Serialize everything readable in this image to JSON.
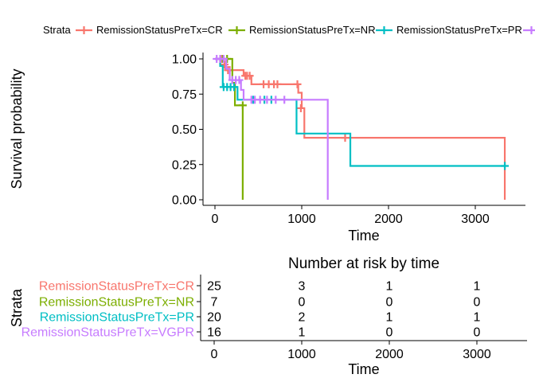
{
  "chart_data": [
    {
      "type": "line",
      "subtype": "kaplan-meier",
      "xlabel": "Time",
      "ylabel": "Survival probability",
      "xlim": [
        0,
        3350
      ],
      "ylim": [
        0,
        1
      ],
      "x_ticks": [
        0,
        1000,
        2000,
        3000
      ],
      "y_ticks": [
        0.0,
        0.25,
        0.5,
        0.75,
        1.0
      ],
      "x_tick_labels": [
        "0",
        "1000",
        "2000",
        "3000"
      ],
      "y_tick_labels": [
        "0.00",
        "0.25",
        "0.50",
        "0.75",
        "1.00"
      ],
      "grid": false,
      "legend": {
        "title": "Strata",
        "position": "top",
        "entries": [
          "RemissionStatusPreTx=CR",
          "RemissionStatusPreTx=NR",
          "RemissionStatusPreTx=PR",
          "RemissionStatusPreTx=VGPR"
        ]
      },
      "series": [
        {
          "name": "RemissionStatusPreTx=CR",
          "color": "#F8766D",
          "steps": [
            [
              0,
              1.0
            ],
            [
              60,
              0.96
            ],
            [
              120,
              0.92
            ],
            [
              330,
              0.88
            ],
            [
              420,
              0.82
            ],
            [
              960,
              0.76
            ],
            [
              1000,
              0.65
            ],
            [
              1030,
              0.44
            ],
            [
              3340,
              0.0
            ]
          ],
          "censor": [
            [
              70,
              1.0
            ],
            [
              110,
              0.96
            ],
            [
              150,
              0.92
            ],
            [
              170,
              0.92
            ],
            [
              350,
              0.88
            ],
            [
              370,
              0.88
            ],
            [
              400,
              0.88
            ],
            [
              560,
              0.82
            ],
            [
              620,
              0.82
            ],
            [
              680,
              0.82
            ],
            [
              720,
              0.82
            ],
            [
              950,
              0.82
            ],
            [
              990,
              0.65
            ],
            [
              1500,
              0.44
            ]
          ],
          "end": 3340
        },
        {
          "name": "RemissionStatusPreTx=NR",
          "color": "#7CAE00",
          "steps": [
            [
              0,
              1.0
            ],
            [
              200,
              0.83
            ],
            [
              230,
              0.67
            ],
            [
              320,
              0.0
            ]
          ],
          "censor": [
            [
              90,
              1.0
            ],
            [
              140,
              1.0
            ],
            [
              320,
              0.67
            ]
          ],
          "end": 320
        },
        {
          "name": "RemissionStatusPreTx=PR",
          "color": "#00BFC4",
          "steps": [
            [
              0,
              1.0
            ],
            [
              60,
              0.95
            ],
            [
              90,
              0.8
            ],
            [
              260,
              0.71
            ],
            [
              940,
              0.47
            ],
            [
              1560,
              0.24
            ]
          ],
          "censor": [
            [
              100,
              0.8
            ],
            [
              140,
              0.8
            ],
            [
              180,
              0.8
            ],
            [
              220,
              0.8
            ],
            [
              440,
              0.71
            ],
            [
              570,
              0.71
            ],
            [
              650,
              0.71
            ],
            [
              3340,
              0.24
            ]
          ],
          "end": 3340
        },
        {
          "name": "RemissionStatusPreTx=VGPR",
          "color": "#C77CFF",
          "steps": [
            [
              0,
              1.0
            ],
            [
              130,
              0.93
            ],
            [
              170,
              0.85
            ],
            [
              300,
              0.78
            ],
            [
              330,
              0.71
            ],
            [
              1300,
              0.0
            ]
          ],
          "censor": [
            [
              20,
              1.0
            ],
            [
              60,
              1.0
            ],
            [
              100,
              1.0
            ],
            [
              200,
              0.85
            ],
            [
              240,
              0.85
            ],
            [
              280,
              0.85
            ],
            [
              420,
              0.71
            ],
            [
              460,
              0.71
            ],
            [
              520,
              0.71
            ],
            [
              600,
              0.71
            ],
            [
              700,
              0.71
            ],
            [
              800,
              0.71
            ]
          ],
          "end": 1300
        }
      ]
    },
    {
      "type": "table",
      "title": "Number at risk by time",
      "xlabel": "Time",
      "ylabel": "Strata",
      "xlim": [
        0,
        3350
      ],
      "x_ticks": [
        0,
        1000,
        2000,
        3000
      ],
      "x_tick_labels": [
        "0",
        "1000",
        "2000",
        "3000"
      ],
      "rows": [
        {
          "label": "RemissionStatusPreTx=CR",
          "color": "#F8766D",
          "values": [
            "25",
            "3",
            "1",
            "1"
          ]
        },
        {
          "label": "RemissionStatusPreTx=NR",
          "color": "#7CAE00",
          "values": [
            "7",
            "0",
            "0",
            "0"
          ]
        },
        {
          "label": "RemissionStatusPreTx=PR",
          "color": "#00BFC4",
          "values": [
            "20",
            "2",
            "1",
            "1"
          ]
        },
        {
          "label": "RemissionStatusPreTx=VGPR",
          "color": "#C77CFF",
          "values": [
            "16",
            "1",
            "0",
            "0"
          ]
        }
      ]
    }
  ]
}
